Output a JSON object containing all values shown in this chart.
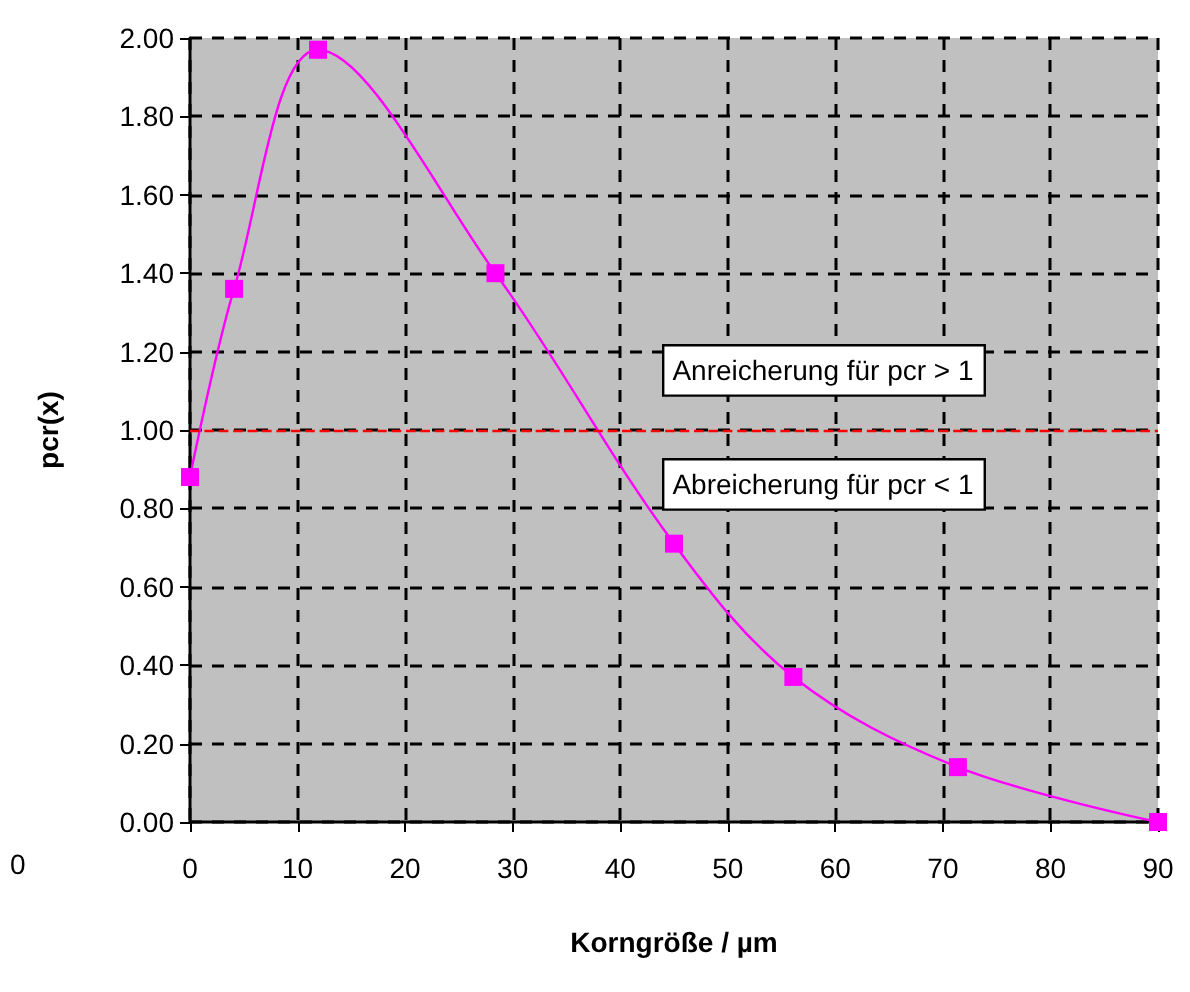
{
  "chart_data": {
    "type": "line",
    "xlabel": "Korngröße / µm",
    "ylabel": "pcr(x)",
    "x": [
      0,
      4.1,
      11.9,
      28.4,
      45,
      56.1,
      71.4,
      90
    ],
    "series": [
      {
        "color": "#ff00ff",
        "values": [
          0.88,
          1.36,
          1.97,
          1.4,
          0.71,
          0.37,
          0.14,
          0.0
        ]
      }
    ],
    "xlim": [
      0,
      90
    ],
    "xticks": [
      0,
      10,
      20,
      30,
      40,
      50,
      60,
      70,
      80,
      90
    ],
    "ylim": [
      0,
      2
    ],
    "yticks": [
      {
        "value": 0,
        "label": "0.00"
      },
      {
        "value": 0.2,
        "label": "0.20"
      },
      {
        "value": 0.4,
        "label": "0.40"
      },
      {
        "value": 0.6,
        "label": "0.60"
      },
      {
        "value": 0.8,
        "label": "0.80"
      },
      {
        "value": 1,
        "label": "1.00"
      },
      {
        "value": 1.2,
        "label": "1.20"
      },
      {
        "value": 1.4,
        "label": "1.40"
      },
      {
        "value": 1.6,
        "label": "1.60"
      },
      {
        "value": 1.8,
        "label": "1.80"
      },
      {
        "value": 2,
        "label": "2.00"
      }
    ],
    "ref_lines": [
      {
        "axis": "y",
        "value": 1,
        "color": "#ff0000",
        "line_style": "dashed"
      }
    ],
    "annotations": [
      "Anreicherung für pcr > 1",
      "Abreicherung für pcr < 1",
      "0"
    ],
    "grid": true,
    "marker": "square",
    "line_style": "solid"
  }
}
